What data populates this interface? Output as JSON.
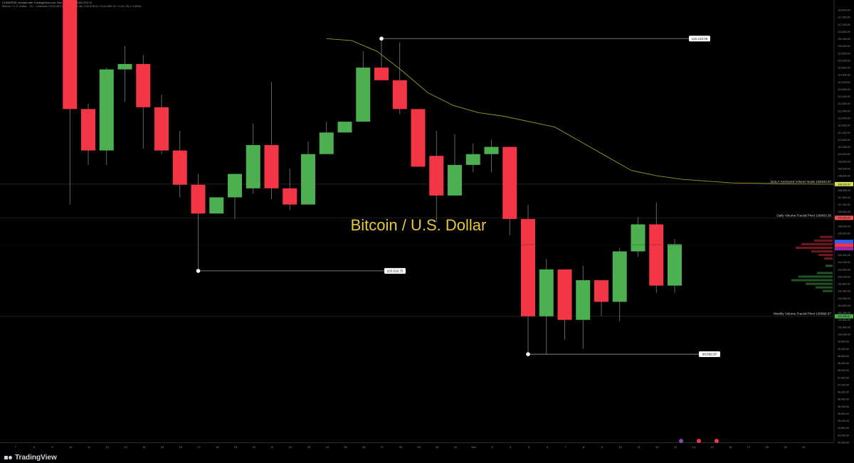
{
  "header": {
    "line1": "COINDESK created with TradingView.com, Nov 12, 2025 14:54 UTC+2",
    "line2": "Bitcoin / U.S. Dollar · 1D · Coinbase  O103,057.21  H105,335.46  L102,638.51  C104,968.78  +1,911.35 (+1.85%)"
  },
  "brand": {
    "name": "TradingView"
  },
  "chart_data": {
    "type": "candlestick",
    "title": "Bitcoin / U.S. Dollar",
    "yrange": [
      94000,
      118000
    ],
    "y_ticks": [
      94000,
      94400,
      94800,
      95200,
      95600,
      96000,
      96400,
      96800,
      97200,
      97600,
      98000,
      98400,
      98800,
      99200,
      99600,
      100000,
      100400,
      100800,
      101200,
      101600,
      102000,
      102400,
      102800,
      103200,
      103600,
      104000,
      104400,
      104800,
      105200,
      105600,
      106000,
      106400,
      106800,
      107200,
      107600,
      108000,
      108400,
      108800,
      109200,
      109600,
      110000,
      110400,
      110800,
      111200,
      111600,
      112000,
      112400,
      112800,
      113200,
      113600,
      114000,
      114400,
      114800,
      115200,
      115600,
      116000,
      116400,
      116800,
      117200,
      117600,
      118000
    ],
    "x_labels": [
      "7",
      "8",
      "9",
      "10",
      "11",
      "12",
      "13",
      "14",
      "15",
      "16",
      "17",
      "18",
      "19",
      "20",
      "21",
      "22",
      "23",
      "24",
      "25",
      "26",
      "27",
      "28",
      "29",
      "30",
      "31",
      "Nov",
      "3",
      "4",
      "5",
      "6",
      "7",
      "8",
      "9",
      "10",
      "11",
      "12",
      "13",
      "14",
      "15",
      "16",
      "17",
      "18",
      "19",
      "20"
    ],
    "candles": [
      {
        "x": "10",
        "open": 121000,
        "high": 121000,
        "low": 107200,
        "close": 112500
      },
      {
        "x": "11",
        "open": 112500,
        "high": 112800,
        "low": 109400,
        "close": 110200
      },
      {
        "x": "12",
        "open": 110200,
        "high": 114800,
        "low": 109400,
        "close": 114700
      },
      {
        "x": "13",
        "open": 114700,
        "high": 116000,
        "low": 112900,
        "close": 115000
      },
      {
        "x": "14",
        "open": 115000,
        "high": 115500,
        "low": 110300,
        "close": 112600
      },
      {
        "x": "15",
        "open": 112600,
        "high": 113300,
        "low": 110000,
        "close": 110200
      },
      {
        "x": "16",
        "open": 110200,
        "high": 111300,
        "low": 107600,
        "close": 108300
      },
      {
        "x": "17",
        "open": 108300,
        "high": 108900,
        "low": 103516.75,
        "close": 106700
      },
      {
        "x": "18",
        "open": 106700,
        "high": 107600,
        "low": 106700,
        "close": 107600
      },
      {
        "x": "19",
        "open": 107600,
        "high": 108900,
        "low": 106400,
        "close": 108900
      },
      {
        "x": "20",
        "open": 108100,
        "high": 111700,
        "low": 107800,
        "close": 110500
      },
      {
        "x": "21",
        "open": 110500,
        "high": 114000,
        "low": 107500,
        "close": 108100
      },
      {
        "x": "22",
        "open": 108100,
        "high": 109200,
        "low": 106900,
        "close": 107200
      },
      {
        "x": "23",
        "open": 107200,
        "high": 110700,
        "low": 107200,
        "close": 110000
      },
      {
        "x": "24",
        "open": 110000,
        "high": 111800,
        "low": 110000,
        "close": 111200
      },
      {
        "x": "25",
        "open": 111200,
        "high": 111800,
        "low": 111200,
        "close": 111800
      },
      {
        "x": "26",
        "open": 111800,
        "high": 115700,
        "low": 111800,
        "close": 114800
      },
      {
        "x": "27",
        "open": 114800,
        "high": 116410.06,
        "low": 114100,
        "close": 114100
      },
      {
        "x": "28",
        "open": 114100,
        "high": 116200,
        "low": 112200,
        "close": 112500
      },
      {
        "x": "29",
        "open": 112500,
        "high": 112500,
        "low": 109400,
        "close": 109300
      },
      {
        "x": "30",
        "open": 109900,
        "high": 111300,
        "low": 106200,
        "close": 107700
      },
      {
        "x": "31",
        "open": 107700,
        "high": 111100,
        "low": 107700,
        "close": 109400
      },
      {
        "x": "Nov",
        "open": 109400,
        "high": 110600,
        "low": 109000,
        "close": 110000
      },
      {
        "x": "3",
        "open": 110000,
        "high": 110800,
        "low": 109000,
        "close": 110400
      },
      {
        "x": "3b",
        "open": 110400,
        "high": 110400,
        "low": 105500,
        "close": 106400
      },
      {
        "x": "4",
        "open": 106400,
        "high": 107200,
        "low": 98892.97,
        "close": 101000
      },
      {
        "x": "5",
        "open": 101000,
        "high": 104200,
        "low": 98892.97,
        "close": 103600
      },
      {
        "x": "6",
        "open": 103600,
        "high": 103600,
        "low": 99700,
        "close": 100800
      },
      {
        "x": "7",
        "open": 100800,
        "high": 103800,
        "low": 99200,
        "close": 103000
      },
      {
        "x": "8",
        "open": 103000,
        "high": 103000,
        "low": 101000,
        "close": 101800
      },
      {
        "x": "9",
        "open": 101800,
        "high": 104800,
        "low": 100700,
        "close": 104600
      },
      {
        "x": "10",
        "open": 104600,
        "high": 106500,
        "low": 104300,
        "close": 106100
      },
      {
        "x": "11",
        "open": 106100,
        "high": 107300,
        "low": 102300,
        "close": 102700
      },
      {
        "x": "12",
        "open": 102700,
        "high": 105300,
        "low": 102300,
        "close": 105000
      }
    ],
    "annotations": [
      {
        "label": "116,410.06",
        "price": 116410.06
      },
      {
        "label": "103,516.75",
        "price": 103516.75
      },
      {
        "label": "98,892.97",
        "price": 98892.97
      }
    ],
    "levels": [
      {
        "label": "DAILY Anchored Volume Node 108333.97",
        "price": 108333.97,
        "color": "#d4e157"
      },
      {
        "label": "Daily Volume Fractal Pivot 106463.30",
        "price": 106463.3,
        "color": "#ef5350"
      },
      {
        "label": "Weekly Volume Fractal Pivot 100996.87",
        "price": 100996.87,
        "color": "#4caf50"
      }
    ],
    "vwap_curve": [
      [
        116410,
        116300,
        115700,
        114600,
        113400,
        112700,
        112300,
        112100,
        111800,
        111500,
        110700,
        109900,
        109100,
        108800,
        108600,
        108500,
        108400,
        108380,
        108350,
        108340,
        108334
      ]
    ],
    "colors": {
      "up": "#4caf50",
      "down": "#f23645",
      "wick": "#787b86",
      "title": "#e6c83a",
      "curve": "#9a9a20"
    }
  }
}
